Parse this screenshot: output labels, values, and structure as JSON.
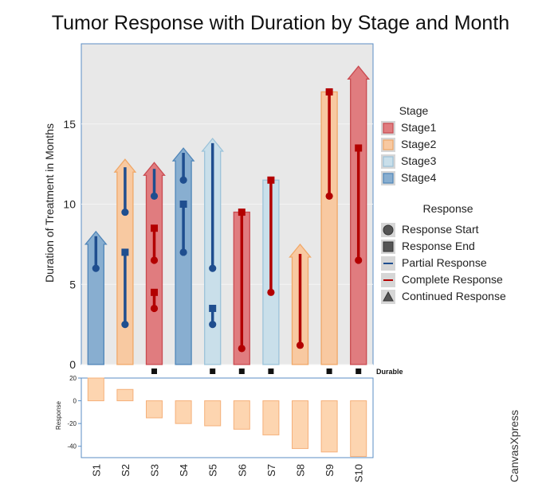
{
  "chart_data": {
    "type": "bar",
    "title": "Tumor Response with Duration by Stage and Month",
    "ylabel": "Duration of Treatment in Months",
    "ylim": [
      0,
      20
    ],
    "yticks": [
      0,
      5,
      10,
      15
    ],
    "grid": true,
    "categories": [
      "S1",
      "S2",
      "S3",
      "S4",
      "S5",
      "S6",
      "S7",
      "S8",
      "S9",
      "S10"
    ],
    "subjects": [
      {
        "id": "S1",
        "stage": "Stage4",
        "duration": 7.5,
        "continued": true,
        "durable": false,
        "response": 20,
        "segments": [
          {
            "type": "partial",
            "start": 6,
            "end": 8,
            "end_marker": false
          }
        ]
      },
      {
        "id": "S2",
        "stage": "Stage2",
        "duration": 12,
        "continued": true,
        "durable": false,
        "response": 10,
        "segments": [
          {
            "type": "partial",
            "start": 2.5,
            "end": 7,
            "end_marker": true
          },
          {
            "type": "partial",
            "start": 9.5,
            "end": 12.3,
            "end_marker": false
          }
        ]
      },
      {
        "id": "S3",
        "stage": "Stage1",
        "duration": 11.8,
        "continued": true,
        "durable": true,
        "response": -15,
        "segments": [
          {
            "type": "complete",
            "start": 3.5,
            "end": 4.5,
            "end_marker": true
          },
          {
            "type": "complete",
            "start": 6.5,
            "end": 8.5,
            "end_marker": true
          },
          {
            "type": "partial",
            "start": 10.5,
            "end": 12.2,
            "end_marker": false
          }
        ]
      },
      {
        "id": "S4",
        "stage": "Stage4",
        "duration": 12.7,
        "continued": true,
        "durable": false,
        "response": -20,
        "segments": [
          {
            "type": "partial",
            "start": 7,
            "end": 10,
            "end_marker": true
          },
          {
            "type": "partial",
            "start": 11.5,
            "end": 13.2,
            "end_marker": false
          }
        ]
      },
      {
        "id": "S5",
        "stage": "Stage3",
        "duration": 13.3,
        "continued": true,
        "durable": true,
        "response": -22,
        "segments": [
          {
            "type": "partial",
            "start": 2.5,
            "end": 3.5,
            "end_marker": true
          },
          {
            "type": "partial",
            "start": 6,
            "end": 13.8,
            "end_marker": false
          }
        ]
      },
      {
        "id": "S6",
        "stage": "Stage1",
        "duration": 9.5,
        "continued": false,
        "durable": true,
        "response": -25,
        "segments": [
          {
            "type": "complete",
            "start": 1,
            "end": 9.5,
            "end_marker": true
          }
        ]
      },
      {
        "id": "S7",
        "stage": "Stage3",
        "duration": 11.5,
        "continued": false,
        "durable": true,
        "response": -30,
        "segments": [
          {
            "type": "complete",
            "start": 4.5,
            "end": 11.5,
            "end_marker": true
          }
        ]
      },
      {
        "id": "S8",
        "stage": "Stage2",
        "duration": 6.7,
        "continued": true,
        "durable": false,
        "response": -42,
        "segments": [
          {
            "type": "complete",
            "start": 1.2,
            "end": 6.9,
            "end_marker": false
          }
        ]
      },
      {
        "id": "S9",
        "stage": "Stage2",
        "duration": 17,
        "continued": false,
        "durable": true,
        "response": -45,
        "segments": [
          {
            "type": "complete",
            "start": 10.5,
            "end": 17,
            "end_marker": true
          }
        ]
      },
      {
        "id": "S10",
        "stage": "Stage1",
        "duration": 17.8,
        "continued": true,
        "durable": true,
        "response": -49,
        "segments": [
          {
            "type": "complete",
            "start": 6.5,
            "end": 13.5,
            "end_marker": true
          }
        ]
      }
    ],
    "stages": [
      {
        "name": "Stage1",
        "fill": "#e07c7f",
        "stroke": "#c94a50"
      },
      {
        "name": "Stage2",
        "fill": "#f8c9a1",
        "stroke": "#f0a868"
      },
      {
        "name": "Stage3",
        "fill": "#c9dfea",
        "stroke": "#9cc3d9"
      },
      {
        "name": "Stage4",
        "fill": "#88aed0",
        "stroke": "#4f85b8"
      }
    ],
    "colors": {
      "partial": "#1f4e8f",
      "complete": "#b30000",
      "panel_bg": "#e8e8e8",
      "axis_frame": "#5b8ec4",
      "response_bar_fill": "#fdd5b0",
      "response_bar_stroke": "#f5b07a"
    },
    "legend": {
      "stage_title": "Stage",
      "response_title": "Response",
      "response_items": [
        {
          "label": "Response Start",
          "icon": "circle"
        },
        {
          "label": "Response End",
          "icon": "square"
        },
        {
          "label": "Partial Response",
          "icon": "line-blue"
        },
        {
          "label": "Complete Response",
          "icon": "line-red"
        },
        {
          "label": "Continued Response",
          "icon": "triangle"
        }
      ]
    },
    "durable_label": "Durable",
    "response_panel": {
      "ylabel": "Response",
      "ylim": [
        -50,
        20
      ],
      "yticks": [
        20,
        0,
        -20,
        -40
      ]
    },
    "watermark": "CanvasXpress"
  }
}
